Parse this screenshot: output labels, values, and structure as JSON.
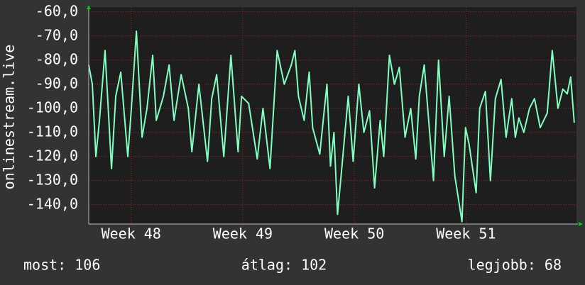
{
  "chart_data": {
    "type": "line",
    "y_label": "onlinestream.live",
    "x": [
      47.62,
      47.652,
      47.684,
      47.716,
      47.766,
      47.824,
      47.862,
      47.907,
      47.97,
      48.002,
      48.047,
      48.098,
      48.142,
      48.193,
      48.225,
      48.289,
      48.34,
      48.384,
      48.448,
      48.512,
      48.544,
      48.607,
      48.684,
      48.722,
      48.766,
      48.83,
      48.894,
      48.958,
      48.989,
      49.053,
      49.13,
      49.181,
      49.244,
      49.308,
      49.372,
      49.435,
      49.467,
      49.499,
      49.55,
      49.595,
      49.626,
      49.69,
      49.754,
      49.786,
      49.817,
      49.849,
      49.881,
      49.945,
      49.989,
      50.04,
      50.085,
      50.136,
      50.181,
      50.231,
      50.263,
      50.314,
      50.359,
      50.403,
      50.454,
      50.505,
      50.55,
      50.582,
      50.626,
      50.671,
      50.709,
      50.754,
      50.805,
      50.849,
      50.9,
      50.964,
      50.996,
      51.028,
      51.091,
      51.123,
      51.174,
      51.219,
      51.263,
      51.314,
      51.359,
      51.41,
      51.442,
      51.474,
      51.518,
      51.569,
      51.614,
      51.665,
      51.728,
      51.773,
      51.824,
      51.868,
      51.907,
      51.938,
      51.97
    ],
    "series": [
      {
        "color": "#80ffc0",
        "values": [
          -82,
          -90,
          -120,
          -105,
          -76,
          -125,
          -95,
          -85,
          -120,
          -100,
          -68,
          -112,
          -100,
          -78,
          -105,
          -95,
          -82,
          -105,
          -86,
          -100,
          -118,
          -90,
          -122,
          -96,
          -86,
          -120,
          -78,
          -118,
          -95,
          -98,
          -121,
          -100,
          -125,
          -76,
          -90,
          -82,
          -76,
          -95,
          -105,
          -85,
          -108,
          -119,
          -90,
          -124,
          -110,
          -144,
          -128,
          -95,
          -122,
          -90,
          -110,
          -101,
          -133,
          -105,
          -120,
          -78,
          -90,
          -83,
          -112,
          -100,
          -121,
          -95,
          -82,
          -108,
          -130,
          -80,
          -120,
          -95,
          -128,
          -147,
          -108,
          -115,
          -135,
          -100,
          -93,
          -130,
          -96,
          -88,
          -112,
          -96,
          -112,
          -104,
          -110,
          -100,
          -96,
          -108,
          -102,
          -76,
          -100,
          -92,
          -94,
          -87,
          -106
        ]
      }
    ],
    "xlim": [
      47.62,
      51.99
    ],
    "xticks": [
      {
        "value": 48,
        "label": "Week 48"
      },
      {
        "value": 49,
        "label": "Week 49"
      },
      {
        "value": 50,
        "label": "Week 50"
      },
      {
        "value": 51,
        "label": "Week 51"
      }
    ],
    "ylim": [
      -148,
      -58
    ],
    "yticks": [
      {
        "value": -60,
        "label": "-60,0"
      },
      {
        "value": -70,
        "label": "-70,0"
      },
      {
        "value": -80,
        "label": "-80,0"
      },
      {
        "value": -90,
        "label": "-90,0"
      },
      {
        "value": -100,
        "label": "-100,0"
      },
      {
        "value": -110,
        "label": "-110,0"
      },
      {
        "value": -120,
        "label": "-120,0"
      },
      {
        "value": -130,
        "label": "-130,0"
      },
      {
        "value": -140,
        "label": "-140,0"
      }
    ],
    "grid": true,
    "grid_color": "#a02020",
    "footer": {
      "current": "most: 106",
      "average": "átlag: 102",
      "best": "legjobb: 68"
    }
  }
}
